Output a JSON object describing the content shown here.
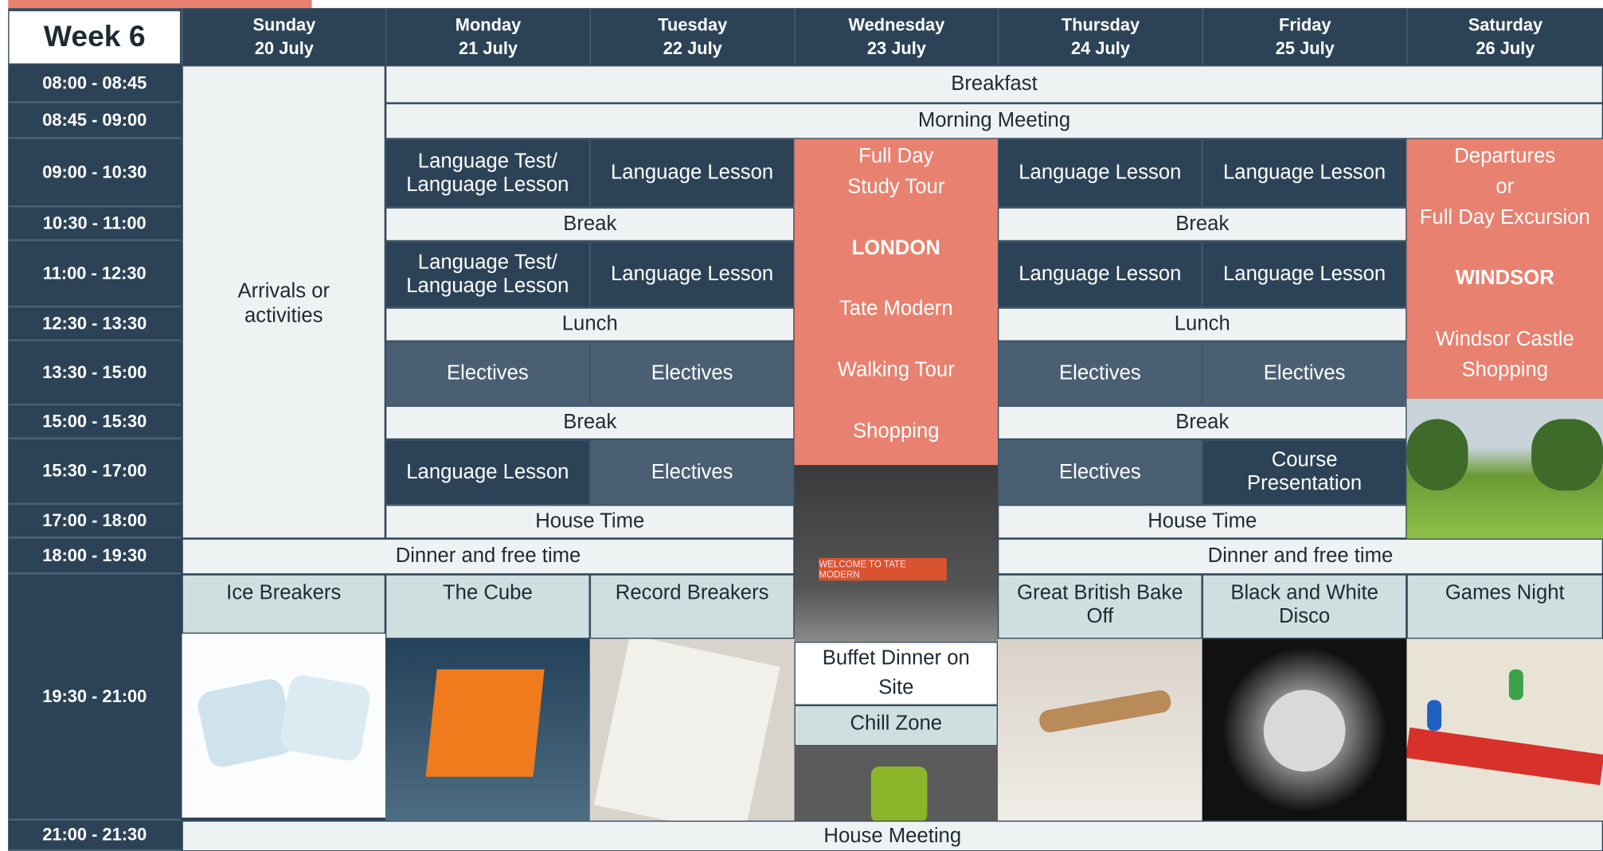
{
  "header": {
    "week": "Week 6"
  },
  "days": [
    {
      "name": "Sunday",
      "date": "20 July"
    },
    {
      "name": "Monday",
      "date": "21 July"
    },
    {
      "name": "Tuesday",
      "date": "22 July"
    },
    {
      "name": "Wednesday",
      "date": "23 July"
    },
    {
      "name": "Thursday",
      "date": "24 July"
    },
    {
      "name": "Friday",
      "date": "25 July"
    },
    {
      "name": "Saturday",
      "date": "26 July"
    }
  ],
  "times": [
    "08:00 - 08:45",
    "08:45 - 09:00",
    "09:00 - 10:30",
    "10:30 - 11:00",
    "11:00 - 12:30",
    "12:30 - 13:30",
    "13:30 - 15:00",
    "15:00 - 15:30",
    "15:30 - 17:00",
    "17:00 - 18:00",
    "18:00 - 19:30",
    "19:30 - 21:00",
    "21:00 - 21:30"
  ],
  "cells": [
    {
      "lines": [
        "Arrivals or",
        "activities"
      ]
    },
    {
      "lines": [
        "Breakfast"
      ]
    },
    {
      "lines": [
        "Morning Meeting"
      ]
    },
    {
      "lines": [
        "Language Test/",
        "Language Lesson"
      ]
    },
    {
      "lines": [
        "Language Lesson"
      ]
    },
    {
      "lines": [
        "Full Day",
        "Study Tour",
        "LONDON",
        "Tate Modern",
        "Walking Tour",
        "Shopping"
      ]
    },
    {
      "lines": [
        "Language Lesson"
      ]
    },
    {
      "lines": [
        "Language Lesson"
      ]
    },
    {
      "lines": [
        "Departures",
        "or",
        "Full Day Excursion",
        "WINDSOR",
        "Windsor Castle",
        "Shopping"
      ]
    },
    {
      "lines": [
        "Break"
      ]
    },
    {
      "lines": [
        "Break"
      ]
    },
    {
      "lines": [
        "Language Test/",
        "Language Lesson"
      ]
    },
    {
      "lines": [
        "Language Lesson"
      ]
    },
    {
      "lines": [
        "Language Lesson"
      ]
    },
    {
      "lines": [
        "Language Lesson"
      ]
    },
    {
      "lines": [
        "Lunch"
      ]
    },
    {
      "lines": [
        "Lunch"
      ]
    },
    {
      "lines": [
        "Electives"
      ]
    },
    {
      "lines": [
        "Electives"
      ]
    },
    {
      "lines": [
        "Electives"
      ]
    },
    {
      "lines": [
        "Electives"
      ]
    },
    {
      "lines": [
        "Break"
      ]
    },
    {
      "lines": [
        "Break"
      ]
    },
    {
      "lines": [
        "Language Lesson"
      ]
    },
    {
      "lines": [
        "Electives"
      ]
    },
    {
      "lines": [
        "Electives"
      ]
    },
    {
      "lines": [
        "Course",
        "Presentation"
      ]
    },
    {
      "lines": [
        "House Time"
      ]
    },
    {
      "lines": [
        "House Time"
      ]
    },
    {
      "lines": [
        "Dinner and free time"
      ]
    },
    {
      "lines": [
        "Dinner and free time"
      ]
    },
    {
      "lines": [
        "Ice Breakers"
      ]
    },
    {
      "lines": [
        "The Cube"
      ]
    },
    {
      "lines": [
        "Record Breakers"
      ]
    },
    {
      "lines": [
        "Great British Bake",
        "Off"
      ]
    },
    {
      "lines": [
        "Black and White",
        "Disco"
      ]
    },
    {
      "lines": [
        "Games Night"
      ]
    },
    {
      "lines": [
        "Buffet Dinner on",
        "Site"
      ]
    },
    {
      "lines": [
        "Chill Zone"
      ]
    },
    {
      "lines": [
        "House Meeting"
      ]
    }
  ],
  "photo_sign": "WELCOME TO TATE MODERN"
}
